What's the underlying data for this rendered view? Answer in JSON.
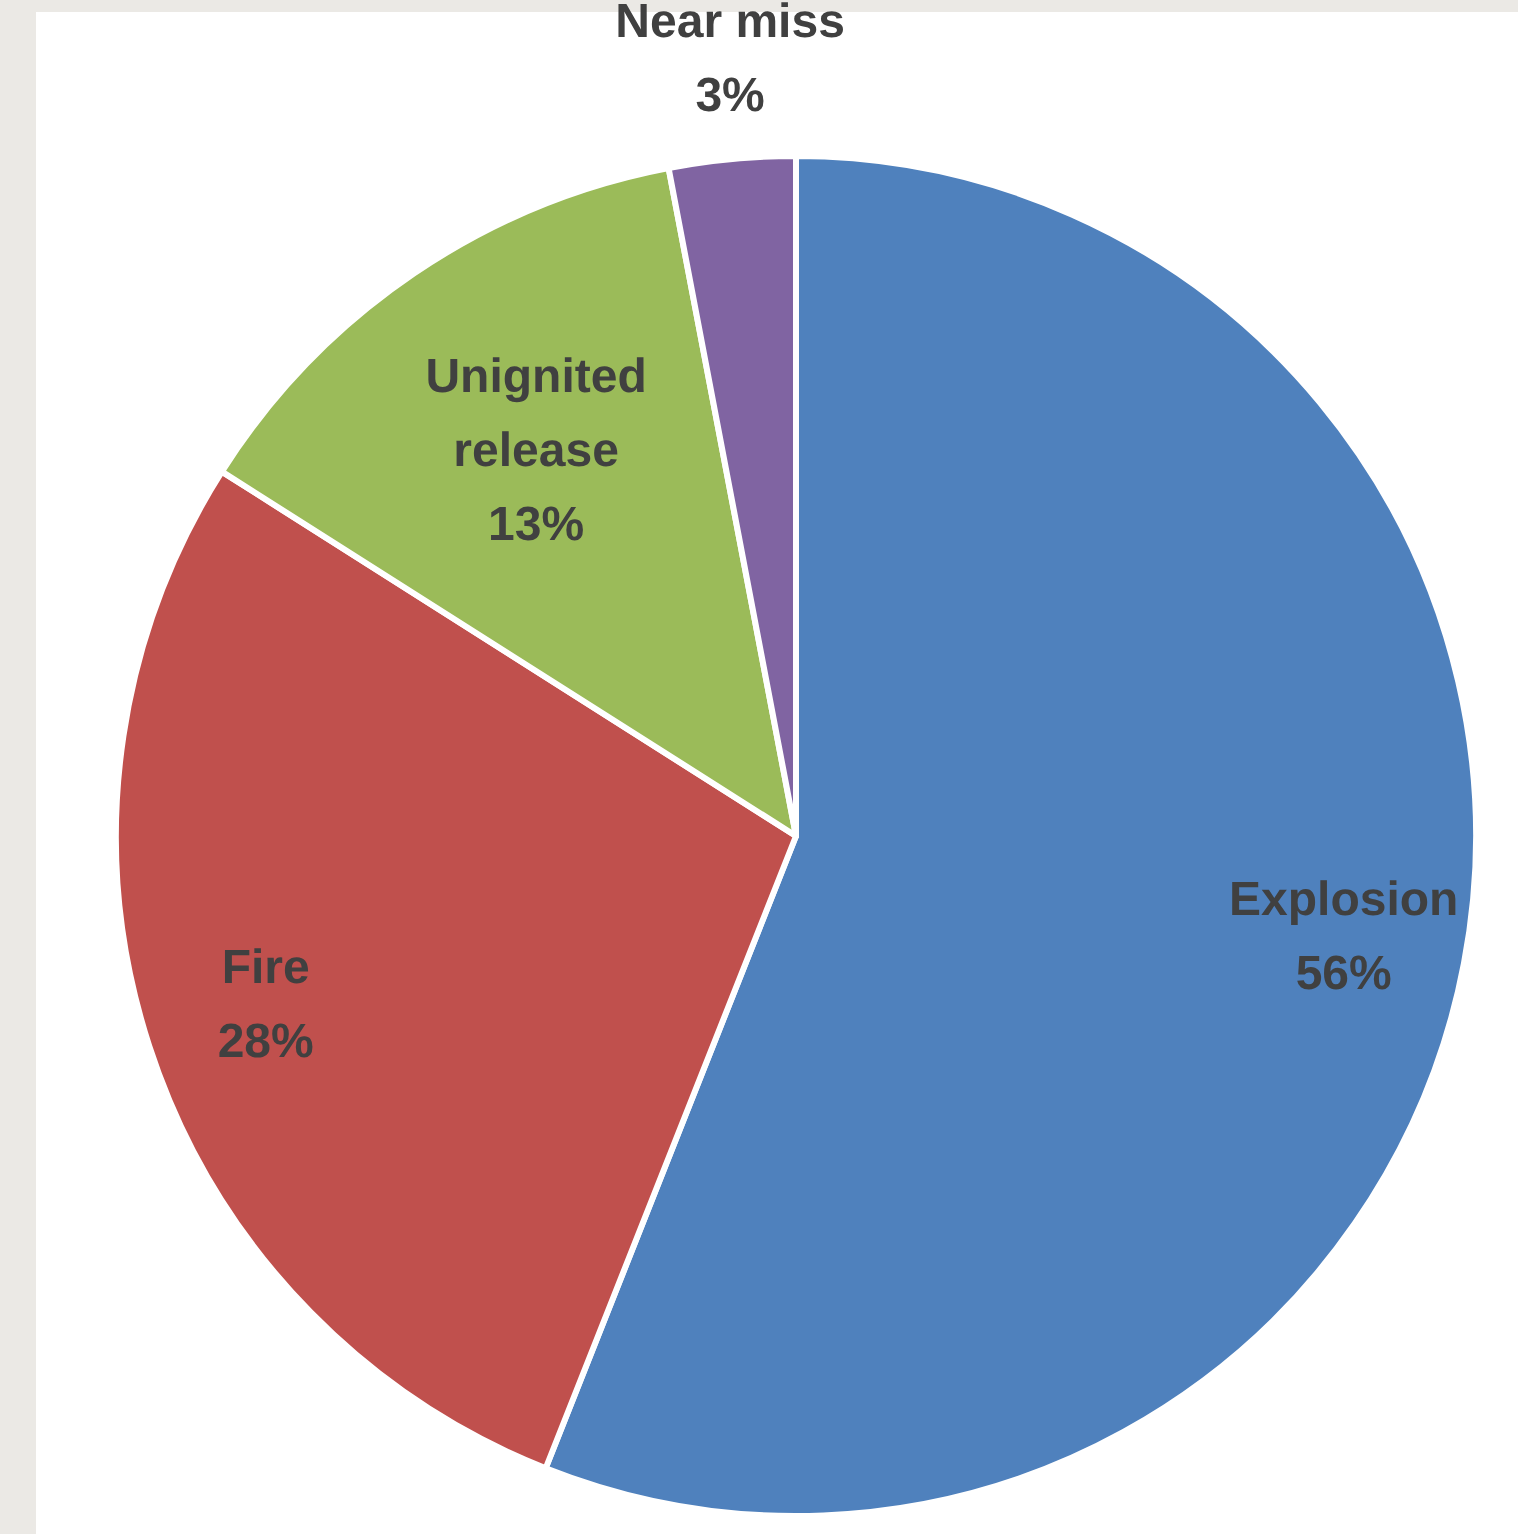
{
  "chart_data": {
    "type": "pie",
    "categories": [
      "Explosion",
      "Fire",
      "Unignited release",
      "Near miss"
    ],
    "values": [
      56,
      28,
      13,
      3
    ],
    "colors": [
      "#4f81bd",
      "#c0504d",
      "#9bbb59",
      "#8064a2"
    ],
    "value_labels": [
      "56%",
      "28%",
      "13%",
      "3%"
    ]
  }
}
